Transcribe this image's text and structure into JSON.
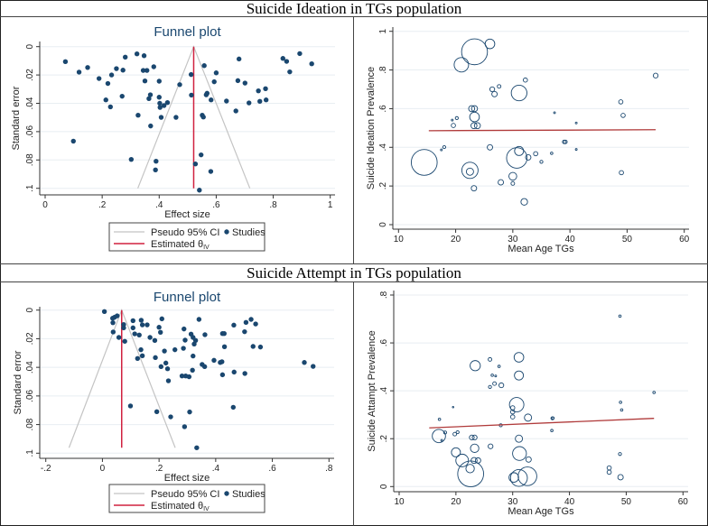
{
  "sections": [
    {
      "title": "Suicide Ideation in TGs population"
    },
    {
      "title": "Suicide Attempt in TGs population"
    }
  ],
  "legend": {
    "pseudo_ci": "Pseudo 95% CI",
    "studies": "Studies",
    "estimated": "Estimated θ",
    "estimated_sub": "IV"
  },
  "colors": {
    "dots": "#1a476f",
    "ci": "#c4c4c4",
    "estimate": "#d0213f",
    "fit": "#b03a3a",
    "grid": "#e8eef2",
    "title": "#1a476f"
  },
  "chart_data": [
    {
      "type": "scatter",
      "subtype": "funnel",
      "title": "Funnel plot",
      "xlabel": "Effect size",
      "ylabel": "Standard error",
      "xlim": [
        0,
        1
      ],
      "ylim": [
        0,
        0.1
      ],
      "xticks": [
        0,
        0.2,
        0.4,
        0.6,
        0.8,
        1
      ],
      "xtick_labels": [
        "0",
        ".2",
        ".4",
        ".6",
        ".8",
        "1"
      ],
      "yticks": [
        0,
        0.02,
        0.04,
        0.06,
        0.08,
        0.1
      ],
      "ytick_labels": [
        "0",
        ".02",
        ".04",
        ".06",
        ".08",
        ".1"
      ],
      "estimate": 0.521,
      "ci": {
        "apex": [
          0.521,
          0
        ],
        "left": [
          0.325,
          0.1
        ],
        "right": [
          0.718,
          0.1
        ]
      },
      "points": [
        [
          0.071,
          0.0106
        ],
        [
          0.119,
          0.018
        ],
        [
          0.149,
          0.0147
        ],
        [
          0.189,
          0.0225
        ],
        [
          0.22,
          0.026
        ],
        [
          0.233,
          0.02
        ],
        [
          0.25,
          0.0155
        ],
        [
          0.273,
          0.0166
        ],
        [
          0.281,
          0.0074
        ],
        [
          0.322,
          0.0051
        ],
        [
          0.347,
          0.0064
        ],
        [
          0.344,
          0.0168
        ],
        [
          0.357,
          0.0168
        ],
        [
          0.381,
          0.0142
        ],
        [
          0.35,
          0.0242
        ],
        [
          0.4,
          0.0244
        ],
        [
          0.213,
          0.0376
        ],
        [
          0.229,
          0.0425
        ],
        [
          0.27,
          0.035
        ],
        [
          0.369,
          0.034
        ],
        [
          0.364,
          0.0367
        ],
        [
          0.4,
          0.0357
        ],
        [
          0.402,
          0.04
        ],
        [
          0.403,
          0.0429
        ],
        [
          0.417,
          0.0416
        ],
        [
          0.429,
          0.0395
        ],
        [
          0.326,
          0.0484
        ],
        [
          0.407,
          0.0499
        ],
        [
          0.459,
          0.0499
        ],
        [
          0.37,
          0.056
        ],
        [
          0.472,
          0.0268
        ],
        [
          0.512,
          0.0197
        ],
        [
          0.513,
          0.0342
        ],
        [
          0.558,
          0.0134
        ],
        [
          0.6,
          0.0185
        ],
        [
          0.593,
          0.0248
        ],
        [
          0.568,
          0.0329
        ],
        [
          0.565,
          0.034
        ],
        [
          0.582,
          0.0376
        ],
        [
          0.551,
          0.0484
        ],
        [
          0.555,
          0.0497
        ],
        [
          0.636,
          0.0384
        ],
        [
          0.669,
          0.0454
        ],
        [
          0.68,
          0.0087
        ],
        [
          0.676,
          0.024
        ],
        [
          0.701,
          0.0257
        ],
        [
          0.715,
          0.0397
        ],
        [
          0.748,
          0.0312
        ],
        [
          0.773,
          0.0297
        ],
        [
          0.753,
          0.0386
        ],
        [
          0.775,
          0.0376
        ],
        [
          0.834,
          0.0083
        ],
        [
          0.847,
          0.0104
        ],
        [
          0.893,
          0.0049
        ],
        [
          0.858,
          0.0178
        ],
        [
          0.935,
          0.0121
        ],
        [
          0.099,
          0.0667
        ],
        [
          0.302,
          0.0796
        ],
        [
          0.389,
          0.0809
        ],
        [
          0.387,
          0.087
        ],
        [
          0.547,
          0.0764
        ],
        [
          0.527,
          0.0828
        ],
        [
          0.581,
          0.0881
        ],
        [
          0.541,
          0.1013
        ]
      ]
    },
    {
      "type": "scatter",
      "subtype": "bubble-regression",
      "title": "",
      "xlabel": "Mean Age TGs",
      "ylabel": "Suicide Ideation Prevalence",
      "xlim": [
        10,
        60
      ],
      "ylim": [
        0,
        1
      ],
      "xticks": [
        10,
        20,
        30,
        40,
        50,
        60
      ],
      "xtick_labels": [
        "10",
        "20",
        "30",
        "40",
        "50",
        "60"
      ],
      "yticks": [
        0,
        0.2,
        0.4,
        0.6,
        0.8,
        1
      ],
      "ytick_labels": [
        "0",
        ".2",
        ".4",
        ".6",
        ".8",
        "1"
      ],
      "fit_line": {
        "x": [
          15.3,
          55
        ],
        "y": [
          0.486,
          0.491
        ]
      },
      "points": [
        [
          14.5,
          0.322,
          43
        ],
        [
          17.5,
          0.387,
          3
        ],
        [
          18,
          0.401,
          5
        ],
        [
          19.4,
          0.541,
          3
        ],
        [
          19.6,
          0.513,
          7
        ],
        [
          20.2,
          0.551,
          5
        ],
        [
          21,
          0.827,
          24
        ],
        [
          23.3,
          0.894,
          43
        ],
        [
          26,
          0.935,
          16
        ],
        [
          22.8,
          0.6,
          10
        ],
        [
          23.3,
          0.6,
          10
        ],
        [
          23.3,
          0.557,
          16
        ],
        [
          23.2,
          0.512,
          10
        ],
        [
          23.8,
          0.512,
          10
        ],
        [
          22.5,
          0.281,
          27
        ],
        [
          22.5,
          0.274,
          12
        ],
        [
          23.2,
          0.188,
          9
        ],
        [
          26.4,
          0.7,
          8
        ],
        [
          26.8,
          0.675,
          9
        ],
        [
          27.6,
          0.715,
          6
        ],
        [
          31.1,
          0.681,
          26
        ],
        [
          32.2,
          0.748,
          7
        ],
        [
          26,
          0.4,
          9
        ],
        [
          31.1,
          0.381,
          15
        ],
        [
          30.7,
          0.345,
          34
        ],
        [
          32.7,
          0.348,
          9
        ],
        [
          34,
          0.367,
          7
        ],
        [
          35,
          0.325,
          5
        ],
        [
          30,
          0.25,
          13
        ],
        [
          30,
          0.213,
          6
        ],
        [
          27.9,
          0.219,
          9
        ],
        [
          32,
          0.118,
          11
        ],
        [
          37.3,
          0.579,
          3
        ],
        [
          36.8,
          0.369,
          4
        ],
        [
          39,
          0.428,
          6
        ],
        [
          39.2,
          0.428,
          6
        ],
        [
          41.1,
          0.526,
          3
        ],
        [
          41.1,
          0.389,
          3
        ],
        [
          48.9,
          0.635,
          7
        ],
        [
          49.3,
          0.565,
          7
        ],
        [
          49,
          0.269,
          7
        ],
        [
          55,
          0.771,
          8
        ]
      ]
    },
    {
      "type": "scatter",
      "subtype": "funnel",
      "title": "Funnel plot",
      "xlabel": "Effect size",
      "ylabel": "Standard error",
      "xlim": [
        -0.2,
        0.8
      ],
      "ylim": [
        0,
        0.1
      ],
      "xticks": [
        -0.2,
        0,
        0.2,
        0.4,
        0.6,
        0.8
      ],
      "xtick_labels": [
        "-.2",
        "0",
        ".2",
        ".4",
        ".6",
        ".8"
      ],
      "yticks": [
        0,
        0.02,
        0.04,
        0.06,
        0.08,
        0.1
      ],
      "ytick_labels": [
        "0",
        ".02",
        ".04",
        ".06",
        ".08",
        ".1"
      ],
      "estimate": 0.068,
      "ci": {
        "apex": [
          0.068,
          0
        ],
        "left": [
          -0.118,
          0.0962
        ],
        "right": [
          0.257,
          0.0962
        ]
      },
      "points": [
        [
          0.007,
          0.001
        ],
        [
          0.036,
          0.0057
        ],
        [
          0.043,
          0.005
        ],
        [
          0.052,
          0.004
        ],
        [
          0.037,
          0.0088
        ],
        [
          0.038,
          0.0153
        ],
        [
          0.058,
          0.0191
        ],
        [
          0.075,
          0.0101
        ],
        [
          0.075,
          0.0124
        ],
        [
          0.079,
          0.0218
        ],
        [
          0.108,
          0.0074
        ],
        [
          0.108,
          0.0124
        ],
        [
          0.114,
          0.0166
        ],
        [
          0.137,
          0.0071
        ],
        [
          0.141,
          0.0103
        ],
        [
          0.158,
          0.0103
        ],
        [
          0.13,
          0.0174
        ],
        [
          0.136,
          0.0277
        ],
        [
          0.141,
          0.0319
        ],
        [
          0.124,
          0.0338
        ],
        [
          0.168,
          0.0191
        ],
        [
          0.185,
          0.0212
        ],
        [
          0.187,
          0.0332
        ],
        [
          0.2,
          0.012
        ],
        [
          0.205,
          0.0155
        ],
        [
          0.21,
          0.0061
        ],
        [
          0.207,
          0.0395
        ],
        [
          0.219,
          0.0286
        ],
        [
          0.224,
          0.037
        ],
        [
          0.23,
          0.041
        ],
        [
          0.233,
          0.0494
        ],
        [
          0.256,
          0.0277
        ],
        [
          0.288,
          0.0132
        ],
        [
          0.292,
          0.021
        ],
        [
          0.286,
          0.0267
        ],
        [
          0.281,
          0.046
        ],
        [
          0.294,
          0.046
        ],
        [
          0.306,
          0.0466
        ],
        [
          0.313,
          0.0168
        ],
        [
          0.32,
          0.0191
        ],
        [
          0.329,
          0.0212
        ],
        [
          0.324,
          0.0237
        ],
        [
          0.32,
          0.0321
        ],
        [
          0.318,
          0.042
        ],
        [
          0.341,
          0.0065
        ],
        [
          0.362,
          0.0172
        ],
        [
          0.352,
          0.038
        ],
        [
          0.361,
          0.0395
        ],
        [
          0.394,
          0.0351
        ],
        [
          0.416,
          0.0366
        ],
        [
          0.422,
          0.0361
        ],
        [
          0.424,
          0.0164
        ],
        [
          0.43,
          0.0164
        ],
        [
          0.431,
          0.0256
        ],
        [
          0.424,
          0.0452
        ],
        [
          0.464,
          0.0105
        ],
        [
          0.465,
          0.0433
        ],
        [
          0.502,
          0.0151
        ],
        [
          0.507,
          0.0086
        ],
        [
          0.525,
          0.0065
        ],
        [
          0.541,
          0.0097
        ],
        [
          0.532,
          0.0254
        ],
        [
          0.558,
          0.0258
        ],
        [
          0.503,
          0.0443
        ],
        [
          0.713,
          0.0366
        ],
        [
          0.744,
          0.0393
        ],
        [
          0.099,
          0.067
        ],
        [
          0.192,
          0.071
        ],
        [
          0.241,
          0.0746
        ],
        [
          0.308,
          0.0712
        ],
        [
          0.462,
          0.0679
        ],
        [
          0.29,
          0.0815
        ],
        [
          0.333,
          0.0962
        ]
      ]
    },
    {
      "type": "scatter",
      "subtype": "bubble-regression",
      "title": "",
      "xlabel": "Mean Age TGs",
      "ylabel": "Suicide Attampt Prevalence",
      "xlim": [
        10,
        60
      ],
      "ylim": [
        0,
        0.8
      ],
      "xticks": [
        10,
        20,
        30,
        40,
        50,
        60
      ],
      "xtick_labels": [
        "10",
        "20",
        "30",
        "40",
        "50",
        "60"
      ],
      "yticks": [
        0,
        0.2,
        0.4,
        0.6,
        0.8
      ],
      "ytick_labels": [
        "0",
        ".2",
        ".4",
        ".6",
        ".8"
      ],
      "fit_line": {
        "x": [
          15.3,
          54.9
        ],
        "y": [
          0.245,
          0.285
        ]
      },
      "points": [
        [
          17.1,
          0.281,
          4
        ],
        [
          17.5,
          0.193,
          3
        ],
        [
          17,
          0.211,
          22
        ],
        [
          18.1,
          0.226,
          5
        ],
        [
          19.5,
          0.332,
          2
        ],
        [
          19.8,
          0.219,
          6
        ],
        [
          20.3,
          0.227,
          5
        ],
        [
          20,
          0.143,
          15
        ],
        [
          21.1,
          0.109,
          21
        ],
        [
          22.6,
          0.053,
          43
        ],
        [
          22.5,
          0.075,
          14
        ],
        [
          22.8,
          0.205,
          8
        ],
        [
          23.3,
          0.205,
          8
        ],
        [
          23.3,
          0.16,
          14
        ],
        [
          23.4,
          0.505,
          17
        ],
        [
          23.2,
          0.109,
          10
        ],
        [
          23.9,
          0.109,
          9
        ],
        [
          26,
          0.531,
          6
        ],
        [
          26,
          0.416,
          5
        ],
        [
          26.4,
          0.465,
          4
        ],
        [
          27,
          0.462,
          3
        ],
        [
          26.8,
          0.43,
          6
        ],
        [
          27.6,
          0.502,
          4
        ],
        [
          28,
          0.423,
          8
        ],
        [
          27.9,
          0.256,
          5
        ],
        [
          26.1,
          0.168,
          8
        ],
        [
          30,
          0.329,
          7
        ],
        [
          30,
          0.312,
          7
        ],
        [
          30,
          0.291,
          7
        ],
        [
          30.7,
          0.342,
          24
        ],
        [
          31.1,
          0.54,
          16
        ],
        [
          31.1,
          0.464,
          15
        ],
        [
          31.1,
          0.2,
          12
        ],
        [
          31.2,
          0.138,
          23
        ],
        [
          32.7,
          0.288,
          12
        ],
        [
          32.8,
          0.113,
          9
        ],
        [
          30.2,
          0.038,
          16
        ],
        [
          31.1,
          0.036,
          28
        ],
        [
          32.6,
          0.043,
          31
        ],
        [
          36.9,
          0.234,
          4
        ],
        [
          37,
          0.285,
          5
        ],
        [
          37.1,
          0.286,
          4
        ],
        [
          47,
          0.078,
          7
        ],
        [
          47,
          0.06,
          7
        ],
        [
          48.9,
          0.712,
          4
        ],
        [
          49,
          0.352,
          4
        ],
        [
          49.2,
          0.32,
          4
        ],
        [
          48.9,
          0.136,
          5
        ],
        [
          49,
          0.039,
          9
        ],
        [
          54.9,
          0.393,
          4
        ]
      ]
    }
  ]
}
